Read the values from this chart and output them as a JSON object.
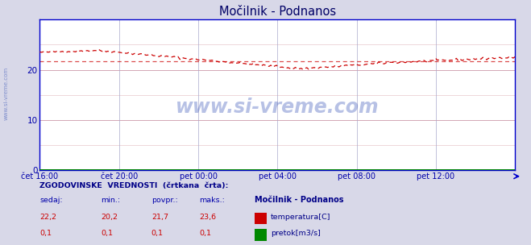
{
  "title": "Močilnik - Podnanos",
  "bg_color": "#d8d8e8",
  "plot_bg_color": "#ffffff",
  "grid_color_h": "#cc99aa",
  "grid_color_v": "#aaaacc",
  "x_labels": [
    "čet 16:00",
    "čet 20:00",
    "pet 00:00",
    "pet 04:00",
    "pet 08:00",
    "pet 12:00"
  ],
  "x_ticks_norm": [
    0.0,
    0.1667,
    0.3333,
    0.5,
    0.6667,
    0.8333
  ],
  "y_ticks": [
    0,
    10,
    20
  ],
  "y_min": 0,
  "y_max": 30,
  "temp_color": "#cc0000",
  "flow_color": "#008800",
  "axis_color": "#0000cc",
  "title_color": "#000066",
  "label_color": "#0000aa",
  "tick_color": "#0000aa",
  "watermark_color": "#1133aa",
  "watermark_text": "www.si-vreme.com",
  "watermark_alpha": 0.3,
  "sidebar_text": "www.si-vreme.com",
  "sidebar_color": "#1133aa",
  "sidebar_alpha": 0.45,
  "temp_min": 20.2,
  "temp_max": 23.6,
  "temp_avg": 21.7,
  "temp_current": 22.2,
  "flow_min": 0.1,
  "flow_max": 0.1,
  "flow_avg": 0.1,
  "flow_current": 0.1,
  "footer_header_color": "#000088",
  "footer_value_color": "#cc0000",
  "footer_label_color": "#000088",
  "footer_station": "Močilnik - Podnanos",
  "temp_icon_color": "#cc0000",
  "flow_icon_color": "#008800"
}
